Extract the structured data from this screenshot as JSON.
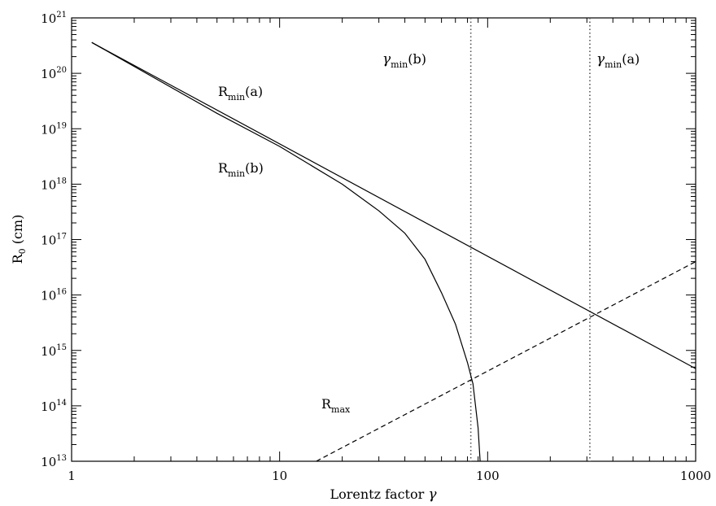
{
  "chart_data": {
    "type": "line",
    "x_scale": "log",
    "y_scale": "log",
    "xlim": [
      1,
      1000
    ],
    "ylim": [
      10000000000000.0,
      1e+21
    ],
    "xlabel": "Lorentz factor γ",
    "ylabel": "R0 (cm)",
    "x_ticks": [
      1,
      10,
      100,
      1000
    ],
    "x_tick_labels": [
      "1",
      "10",
      "100",
      "1000"
    ],
    "y_ticks": [
      10000000000000.0,
      100000000000000.0,
      1000000000000000.0,
      1e+16,
      1e+17,
      1e+18,
      1e+19,
      1e+20,
      1e+21
    ],
    "y_tick_labels": [
      "10",
      "10",
      "10",
      "10",
      "10",
      "10",
      "10",
      "10",
      "10"
    ],
    "y_tick_exponents": [
      "13",
      "14",
      "15",
      "16",
      "17",
      "18",
      "19",
      "20",
      "21"
    ],
    "grid": false,
    "series": [
      {
        "name": "Rmin(a)",
        "style": "solid",
        "x": [
          1.25,
          1000
        ],
        "y": [
          3.6e+20,
          470000000000000.0
        ]
      },
      {
        "name": "Rmin(b)",
        "style": "solid",
        "x": [
          1.25,
          5,
          10,
          20,
          30,
          40,
          50,
          60,
          70,
          80,
          85,
          90,
          92
        ],
        "y": [
          3.6e+20,
          1.9e+19,
          4.8e+18,
          1e+18,
          3.3e+17,
          1.3e+17,
          4.4e+16,
          1.1e+16,
          3000000000000000.0,
          600000000000000.0,
          250000000000000.0,
          40000000000000.0,
          10000000000000.0
        ]
      },
      {
        "name": "Rmax",
        "style": "dashed",
        "x": [
          15,
          1000
        ],
        "y": [
          10000000000000.0,
          4e+16
        ]
      }
    ],
    "vertical_lines": [
      {
        "label": "γmin(b)",
        "x": 83,
        "style": "dotted"
      },
      {
        "label": "γmin(a)",
        "x": 310,
        "style": "dotted"
      }
    ],
    "annotations": [
      {
        "text": "R",
        "sub": "min",
        "suffix": "(a)"
      },
      {
        "text": "R",
        "sub": "min",
        "suffix": "(b)"
      },
      {
        "text": "R",
        "sub": "max",
        "suffix": ""
      },
      {
        "text": "γ",
        "sub": "min",
        "suffix": "(b)"
      },
      {
        "text": "γ",
        "sub": "min",
        "suffix": "(a)"
      }
    ],
    "line_color": "#000000",
    "guide_color": "#555555"
  }
}
